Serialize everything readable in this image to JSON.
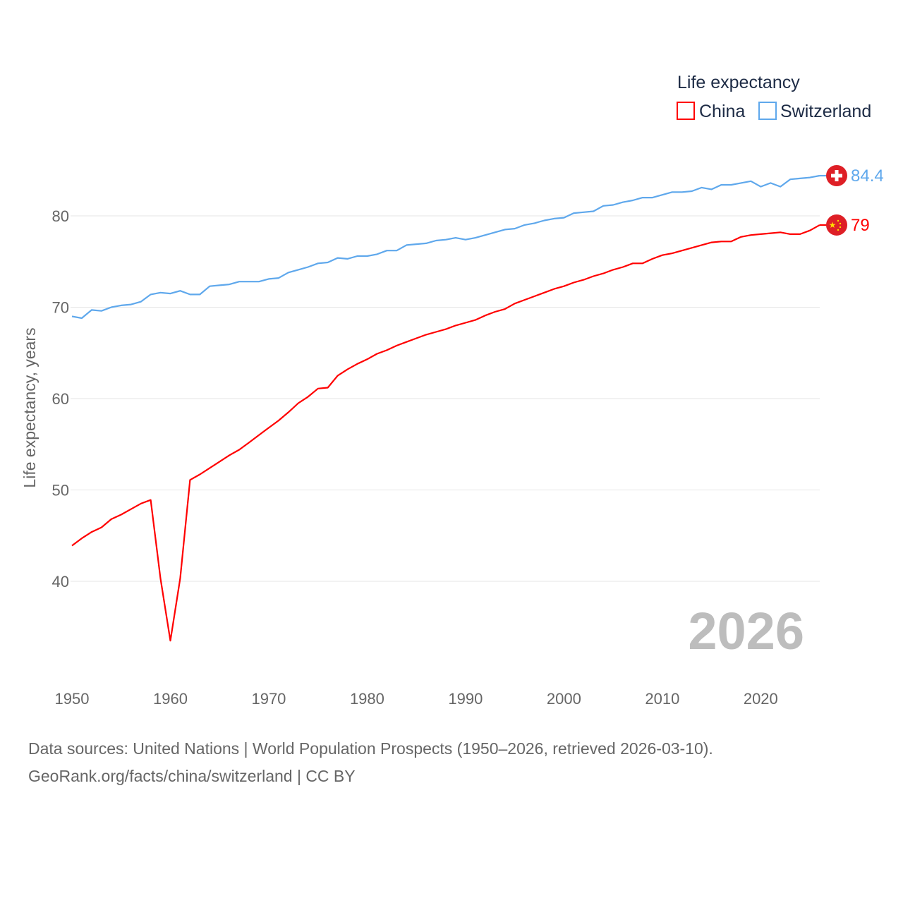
{
  "chart_data": {
    "type": "line",
    "title": "Life expectancy",
    "ylabel": "Life expectancy, years",
    "xlabel": "",
    "xlim": [
      1950,
      2026
    ],
    "ylim": [
      30.5,
      88
    ],
    "grid": true,
    "legend_placement": "top-right",
    "xticks": [
      1950,
      1960,
      1970,
      1980,
      1990,
      2000,
      2010,
      2020
    ],
    "yticks": [
      40,
      50,
      60,
      70,
      80
    ],
    "year_watermark": "2026",
    "x": [
      1950,
      1951,
      1952,
      1953,
      1954,
      1955,
      1956,
      1957,
      1958,
      1959,
      1960,
      1961,
      1962,
      1963,
      1964,
      1965,
      1966,
      1967,
      1968,
      1969,
      1970,
      1971,
      1972,
      1973,
      1974,
      1975,
      1976,
      1977,
      1978,
      1979,
      1980,
      1981,
      1982,
      1983,
      1984,
      1985,
      1986,
      1987,
      1988,
      1989,
      1990,
      1991,
      1992,
      1993,
      1994,
      1995,
      1996,
      1997,
      1998,
      1999,
      2000,
      2001,
      2002,
      2003,
      2004,
      2005,
      2006,
      2007,
      2008,
      2009,
      2010,
      2011,
      2012,
      2013,
      2014,
      2015,
      2016,
      2017,
      2018,
      2019,
      2020,
      2021,
      2022,
      2023,
      2024,
      2025,
      2026
    ],
    "series": [
      {
        "name": "China",
        "color": "#ff0000",
        "end_label": "79",
        "flag": "china-flag",
        "values": [
          43.9,
          44.7,
          45.4,
          45.9,
          46.8,
          47.3,
          47.9,
          48.5,
          48.9,
          40.3,
          33.5,
          40.3,
          51.1,
          51.7,
          52.4,
          53.1,
          53.8,
          54.4,
          55.2,
          56.0,
          56.8,
          57.6,
          58.5,
          59.5,
          60.2,
          61.1,
          61.2,
          62.5,
          63.2,
          63.8,
          64.3,
          64.9,
          65.3,
          65.8,
          66.2,
          66.6,
          67.0,
          67.3,
          67.6,
          68.0,
          68.3,
          68.6,
          69.1,
          69.5,
          69.8,
          70.4,
          70.8,
          71.2,
          71.6,
          72.0,
          72.3,
          72.7,
          73.0,
          73.4,
          73.7,
          74.1,
          74.4,
          74.8,
          74.8,
          75.3,
          75.7,
          75.9,
          76.2,
          76.5,
          76.8,
          77.1,
          77.2,
          77.2,
          77.7,
          77.9,
          78.0,
          78.1,
          78.2,
          78.0,
          78.0,
          78.4,
          79.0
        ]
      },
      {
        "name": "Switzerland",
        "color": "#5fa8ec",
        "end_label": "84.4",
        "flag": "switzerland-flag",
        "values": [
          69.0,
          68.8,
          69.7,
          69.6,
          70.0,
          70.2,
          70.3,
          70.6,
          71.4,
          71.6,
          71.5,
          71.8,
          71.4,
          71.4,
          72.3,
          72.4,
          72.5,
          72.8,
          72.8,
          72.8,
          73.1,
          73.2,
          73.8,
          74.1,
          74.4,
          74.8,
          74.9,
          75.4,
          75.3,
          75.6,
          75.6,
          75.8,
          76.2,
          76.2,
          76.8,
          76.9,
          77.0,
          77.3,
          77.4,
          77.6,
          77.4,
          77.6,
          77.9,
          78.2,
          78.5,
          78.6,
          79.0,
          79.2,
          79.5,
          79.7,
          79.8,
          80.3,
          80.4,
          80.5,
          81.1,
          81.2,
          81.5,
          81.7,
          82.0,
          82.0,
          82.3,
          82.6,
          82.6,
          82.7,
          83.1,
          82.9,
          83.4,
          83.4,
          83.6,
          83.8,
          83.2,
          83.6,
          83.2,
          84.0,
          84.1,
          84.2,
          84.4
        ]
      }
    ]
  },
  "footer": {
    "line1": "Data sources: United Nations | World Population Prospects (1950–2026, retrieved 2026-03-10).",
    "line2": "GeoRank.org/facts/china/switzerland | CC BY"
  }
}
